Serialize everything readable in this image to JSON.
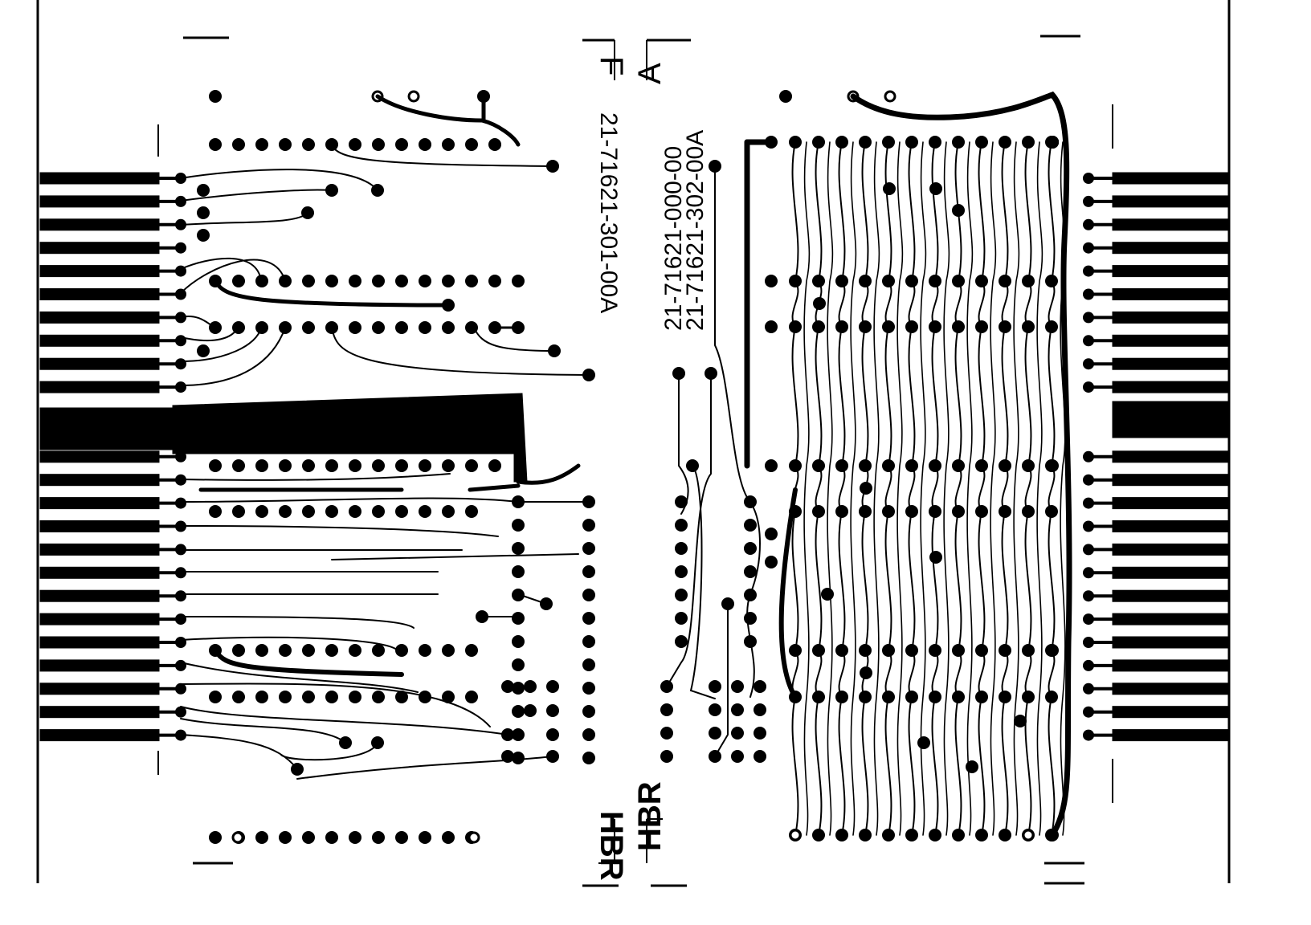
{
  "board": {
    "foreground": "#000000",
    "background": "#ffffff",
    "left_side": {
      "letter": "F",
      "part_number": "21-71621-301-00A",
      "maker": "HBR"
    },
    "right_side": {
      "letter": "A",
      "part_number_1": "21-71621-000-00",
      "part_number_2": "21-71621-302-00A",
      "maker": "HBR"
    }
  }
}
